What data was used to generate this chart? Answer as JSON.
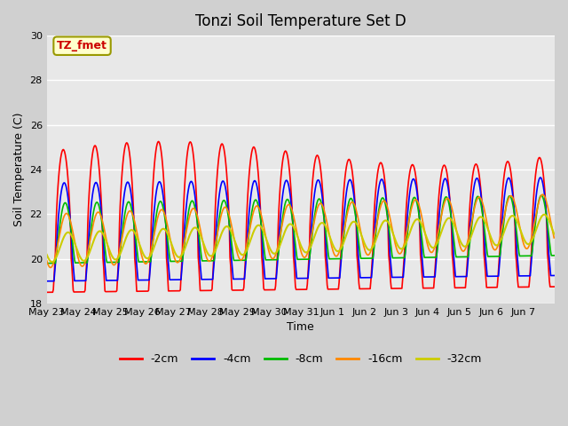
{
  "title": "Tonzi Soil Temperature Set D",
  "xlabel": "Time",
  "ylabel": "Soil Temperature (C)",
  "ylim": [
    18,
    30
  ],
  "yticks": [
    18,
    20,
    22,
    24,
    26,
    28,
    30
  ],
  "xtick_labels": [
    "May 23",
    "May 24",
    "May 25",
    "May 26",
    "May 27",
    "May 28",
    "May 29",
    "May 30",
    "May 31",
    "Jun 1",
    "Jun 2",
    "Jun 3",
    "Jun 4",
    "Jun 5",
    "Jun 6",
    "Jun 7"
  ],
  "colors": {
    "-2cm": "#ff0000",
    "-4cm": "#0000ff",
    "-8cm": "#00bb00",
    "-16cm": "#ff8800",
    "-32cm": "#cccc00"
  },
  "legend_label": "TZ_fmet",
  "n_days": 16,
  "points_per_day": 48
}
